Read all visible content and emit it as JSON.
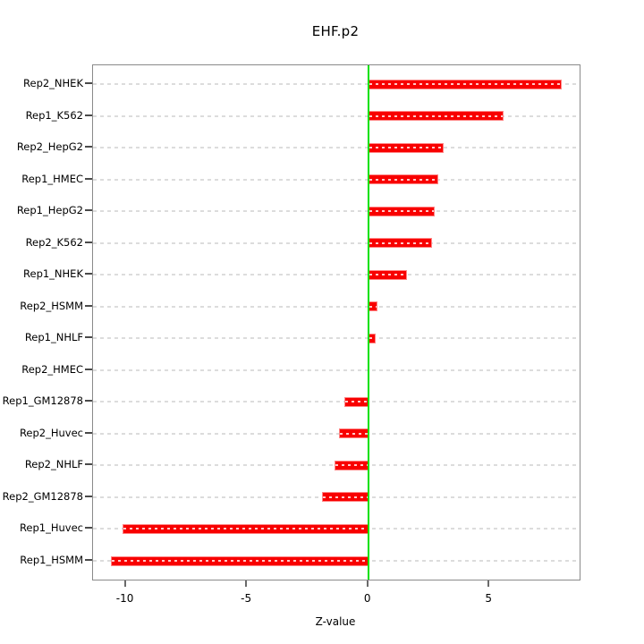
{
  "title": "EHF.p2",
  "chart_data": {
    "type": "bar",
    "orientation": "horizontal",
    "title": "EHF.p2",
    "xlabel": "Z-value",
    "ylabel": "",
    "categories": [
      "Rep2_NHEK",
      "Rep1_K562",
      "Rep2_HepG2",
      "Rep1_HMEC",
      "Rep1_HepG2",
      "Rep2_K562",
      "Rep1_NHEK",
      "Rep2_HSMM",
      "Rep1_NHLF",
      "Rep2_HMEC",
      "Rep1_GM12878",
      "Rep2_Huvec",
      "Rep2_NHLF",
      "Rep2_GM12878",
      "Rep1_Huvec",
      "Rep1_HSMM"
    ],
    "values": [
      8.0,
      5.6,
      3.1,
      2.9,
      2.75,
      2.65,
      1.6,
      0.4,
      0.3,
      0,
      -1.0,
      -1.2,
      -1.4,
      -1.9,
      -10.15,
      -10.6
    ],
    "x_ticks": [
      -10,
      -5,
      0,
      5
    ],
    "xlim": [
      -11.35,
      8.72
    ],
    "zero_line_value": 0,
    "legend": "none",
    "grid": "horizontal-dotted-per-category",
    "colors": {
      "bar": "#f80000",
      "bar_border": "#ff8585",
      "bar_dash_gap": "#ffc9c9",
      "gridline": "#dcdcdc",
      "zero_line": "#00e100",
      "box_border": "#8a8a8a",
      "text": "#000000"
    }
  }
}
